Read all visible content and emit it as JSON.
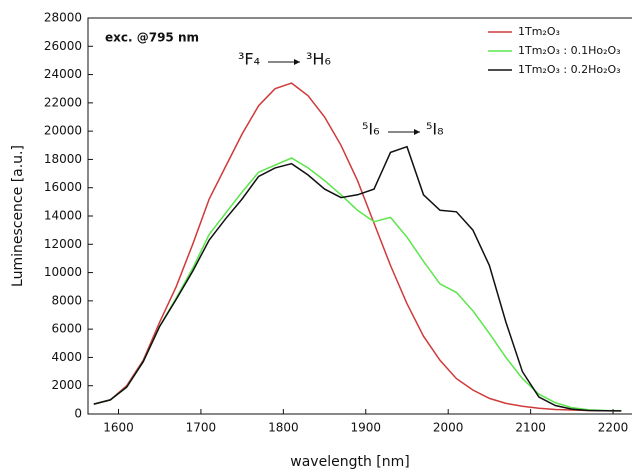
{
  "chart_data": {
    "type": "line",
    "xlabel": "wavelength [nm]",
    "ylabel": "Luminescence [a.u.]",
    "annotations": [
      "exc. @795 nm",
      "³F₄",
      "³H₆",
      "⁵I₆",
      "⁵I₈"
    ],
    "x": [
      1570,
      1590,
      1610,
      1630,
      1650,
      1670,
      1690,
      1710,
      1730,
      1750,
      1770,
      1790,
      1810,
      1830,
      1850,
      1870,
      1890,
      1910,
      1930,
      1950,
      1970,
      1990,
      2010,
      2030,
      2050,
      2070,
      2090,
      2110,
      2130,
      2150,
      2170,
      2190,
      2210
    ],
    "series": [
      {
        "name": "1Tm₂O₃",
        "color": "#d03a3a",
        "values": [
          700,
          1000,
          2000,
          3800,
          6500,
          9000,
          12000,
          15200,
          17500,
          19800,
          21800,
          23000,
          23400,
          22500,
          21000,
          19000,
          16500,
          13500,
          10500,
          7800,
          5500,
          3800,
          2500,
          1700,
          1100,
          750,
          550,
          400,
          320,
          280,
          250,
          230,
          220
        ]
      },
      {
        "name": "1Tm₂O₃ : 0.1Ho₂O₃",
        "color": "#5ce64c",
        "values": [
          700,
          1000,
          1900,
          3700,
          6200,
          8200,
          10300,
          12700,
          14200,
          15700,
          17100,
          17600,
          18100,
          17400,
          16500,
          15500,
          14400,
          13600,
          13900,
          12500,
          10800,
          9200,
          8600,
          7300,
          5700,
          4000,
          2500,
          1400,
          800,
          450,
          300,
          250,
          230
        ]
      },
      {
        "name": "1Tm₂O₃ : 0.2Ho₂O₃",
        "color": "#111111",
        "values": [
          700,
          1000,
          1900,
          3700,
          6200,
          8100,
          10100,
          12300,
          13800,
          15200,
          16800,
          17400,
          17700,
          16900,
          15900,
          15300,
          15500,
          15900,
          18500,
          18900,
          15500,
          14400,
          14300,
          13000,
          10500,
          6500,
          3000,
          1200,
          600,
          350,
          250,
          230,
          220
        ]
      }
    ],
    "xlim": [
      1563,
      2223
    ],
    "xticks": [
      1600,
      1700,
      1800,
      1900,
      2000,
      2100,
      2200
    ],
    "ylim": [
      0,
      28000
    ],
    "yticks": [
      0,
      2000,
      4000,
      6000,
      8000,
      10000,
      12000,
      14000,
      16000,
      18000,
      20000,
      22000,
      24000,
      26000,
      28000
    ],
    "legend": "upper right"
  }
}
